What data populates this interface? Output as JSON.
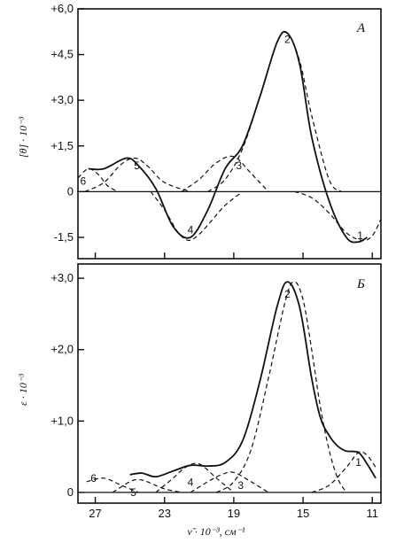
{
  "chart_data": [
    {
      "type": "line",
      "panel_label": "A",
      "ylabel": "[θ] · 10⁻³",
      "xlabel": "",
      "xlim": [
        28,
        10.5
      ],
      "ylim": [
        -2.2,
        6.0
      ],
      "ytick_values": [
        -1.5,
        0,
        1.5,
        3.0,
        4.5,
        6.0
      ],
      "yticks": [
        "-1,5",
        "0",
        "+1,5",
        "+3,0",
        "+4,5",
        "+6,0"
      ],
      "xtick_values": [
        27,
        23,
        19,
        15,
        11
      ],
      "series": [
        {
          "style": "solid",
          "x": [
            27.4,
            26.5,
            25.2,
            24.5,
            23.5,
            22.5,
            21.5,
            20.5,
            19.5,
            18.5,
            17.5,
            16.5,
            15.9,
            15.2,
            14.5,
            13.5,
            12.5,
            11.8,
            11.3
          ],
          "y": [
            0.75,
            0.75,
            1.1,
            0.85,
            0.1,
            -1.15,
            -1.5,
            -0.6,
            0.75,
            1.5,
            3.1,
            4.9,
            5.2,
            4.2,
            1.8,
            -0.3,
            -1.5,
            -1.65,
            -1.5
          ]
        },
        {
          "style": "dashed",
          "label": "1",
          "x": [
            15.5,
            14.5,
            13.5,
            12.5,
            11.6,
            11.0,
            10.5
          ],
          "y": [
            0,
            -0.2,
            -0.7,
            -1.35,
            -1.6,
            -1.45,
            -0.9
          ]
        },
        {
          "style": "dashed",
          "label": "2",
          "x": [
            20.5,
            19.5,
            18.5,
            17.5,
            16.5,
            15.9,
            15.2,
            14.5,
            13.5,
            12.8
          ],
          "y": [
            0,
            0.4,
            1.4,
            3.1,
            4.9,
            5.2,
            4.3,
            2.5,
            0.4,
            0
          ]
        },
        {
          "style": "dashed",
          "label": "3",
          "x": [
            22.0,
            21.0,
            20.0,
            19.0,
            18.0,
            17.0
          ],
          "y": [
            0,
            0.4,
            0.95,
            1.15,
            0.6,
            0
          ]
        },
        {
          "style": "dashed",
          "label": "4",
          "x": [
            23.8,
            23.0,
            22.2,
            21.6,
            21.0,
            20.2,
            19.5,
            18.5
          ],
          "y": [
            0,
            -0.6,
            -1.35,
            -1.6,
            -1.4,
            -0.9,
            -0.45,
            0
          ]
        },
        {
          "style": "dashed",
          "label": "5",
          "x": [
            27.6,
            26.5,
            25.5,
            24.7,
            24.0,
            23.0,
            21.5
          ],
          "y": [
            0,
            0.3,
            0.9,
            1.1,
            0.85,
            0.3,
            0
          ]
        },
        {
          "style": "dashed",
          "label": "6",
          "x": [
            28.0,
            27.4,
            26.8,
            26.3,
            25.7
          ],
          "y": [
            0.45,
            0.75,
            0.55,
            0.2,
            0
          ]
        }
      ],
      "labels": [
        {
          "text": "1",
          "x": 11.7,
          "y": -1.45
        },
        {
          "text": "2",
          "x": 15.9,
          "y": 5.0
        },
        {
          "text": "3",
          "x": 18.7,
          "y": 0.85
        },
        {
          "text": "4",
          "x": 21.5,
          "y": -1.25
        },
        {
          "text": "5",
          "x": 24.6,
          "y": 0.85
        },
        {
          "text": "6",
          "x": 27.7,
          "y": 0.35
        }
      ]
    },
    {
      "type": "line",
      "panel_label": "Б",
      "ylabel": "ε · 10⁻³",
      "xlabel": "ν̃ · 10⁻³, см⁻¹",
      "xlim": [
        28,
        10.5
      ],
      "ylim": [
        -0.15,
        3.2
      ],
      "ytick_values": [
        0,
        1.0,
        2.0,
        3.0
      ],
      "yticks": [
        "0",
        "+1,0",
        "+2,0",
        "+3,0"
      ],
      "xtick_values": [
        27,
        23,
        19,
        15,
        11
      ],
      "xticks": [
        "27",
        "23",
        "19",
        "15",
        "11"
      ],
      "series": [
        {
          "style": "solid",
          "x": [
            25.0,
            24.3,
            23.5,
            22.5,
            21.5,
            20.5,
            19.5,
            18.5,
            17.5,
            16.5,
            15.9,
            15.2,
            14.5,
            14.0,
            13.5,
            13.0,
            12.5,
            11.8,
            11.3,
            10.8
          ],
          "y": [
            0.25,
            0.27,
            0.22,
            0.3,
            0.38,
            0.37,
            0.42,
            0.72,
            1.55,
            2.6,
            2.95,
            2.6,
            1.6,
            1.05,
            0.8,
            0.65,
            0.58,
            0.56,
            0.4,
            0.2
          ]
        },
        {
          "style": "dashed",
          "label": "1",
          "x": [
            14.5,
            13.5,
            12.5,
            11.8,
            11.3,
            10.8
          ],
          "y": [
            0,
            0.1,
            0.35,
            0.56,
            0.52,
            0.35
          ]
        },
        {
          "style": "dashed",
          "label": "2",
          "x": [
            20.0,
            19.0,
            18.0,
            17.0,
            16.0,
            15.5,
            15.0,
            14.5,
            14.0,
            13.5,
            13.0,
            12.5
          ],
          "y": [
            0,
            0.15,
            0.6,
            1.6,
            2.7,
            2.95,
            2.7,
            2.0,
            1.2,
            0.6,
            0.2,
            0
          ]
        },
        {
          "style": "dashed",
          "label": "3",
          "x": [
            21.5,
            20.5,
            19.7,
            19.0,
            18.0,
            17.0
          ],
          "y": [
            0,
            0.15,
            0.25,
            0.28,
            0.15,
            0
          ]
        },
        {
          "style": "dashed",
          "label": "4",
          "x": [
            23.5,
            22.5,
            21.8,
            21.0,
            20.0,
            19.0
          ],
          "y": [
            0,
            0.2,
            0.35,
            0.4,
            0.2,
            0
          ]
        },
        {
          "style": "dashed",
          "label": "5",
          "x": [
            26.0,
            25.0,
            24.5,
            24.0,
            23.0,
            22.0
          ],
          "y": [
            0,
            0.15,
            0.18,
            0.15,
            0.05,
            0
          ]
        },
        {
          "style": "dashed",
          "label": "6",
          "x": [
            27.5,
            26.5,
            25.5,
            24.5
          ],
          "y": [
            0.15,
            0.2,
            0.1,
            0
          ]
        }
      ],
      "labels": [
        {
          "text": "1",
          "x": 11.8,
          "y": 0.42
        },
        {
          "text": "2",
          "x": 15.9,
          "y": 2.78
        },
        {
          "text": "3",
          "x": 18.6,
          "y": 0.1
        },
        {
          "text": "4",
          "x": 21.5,
          "y": 0.14
        },
        {
          "text": "5",
          "x": 24.8,
          "y": 0.0
        },
        {
          "text": "6",
          "x": 27.1,
          "y": 0.2
        }
      ]
    }
  ]
}
